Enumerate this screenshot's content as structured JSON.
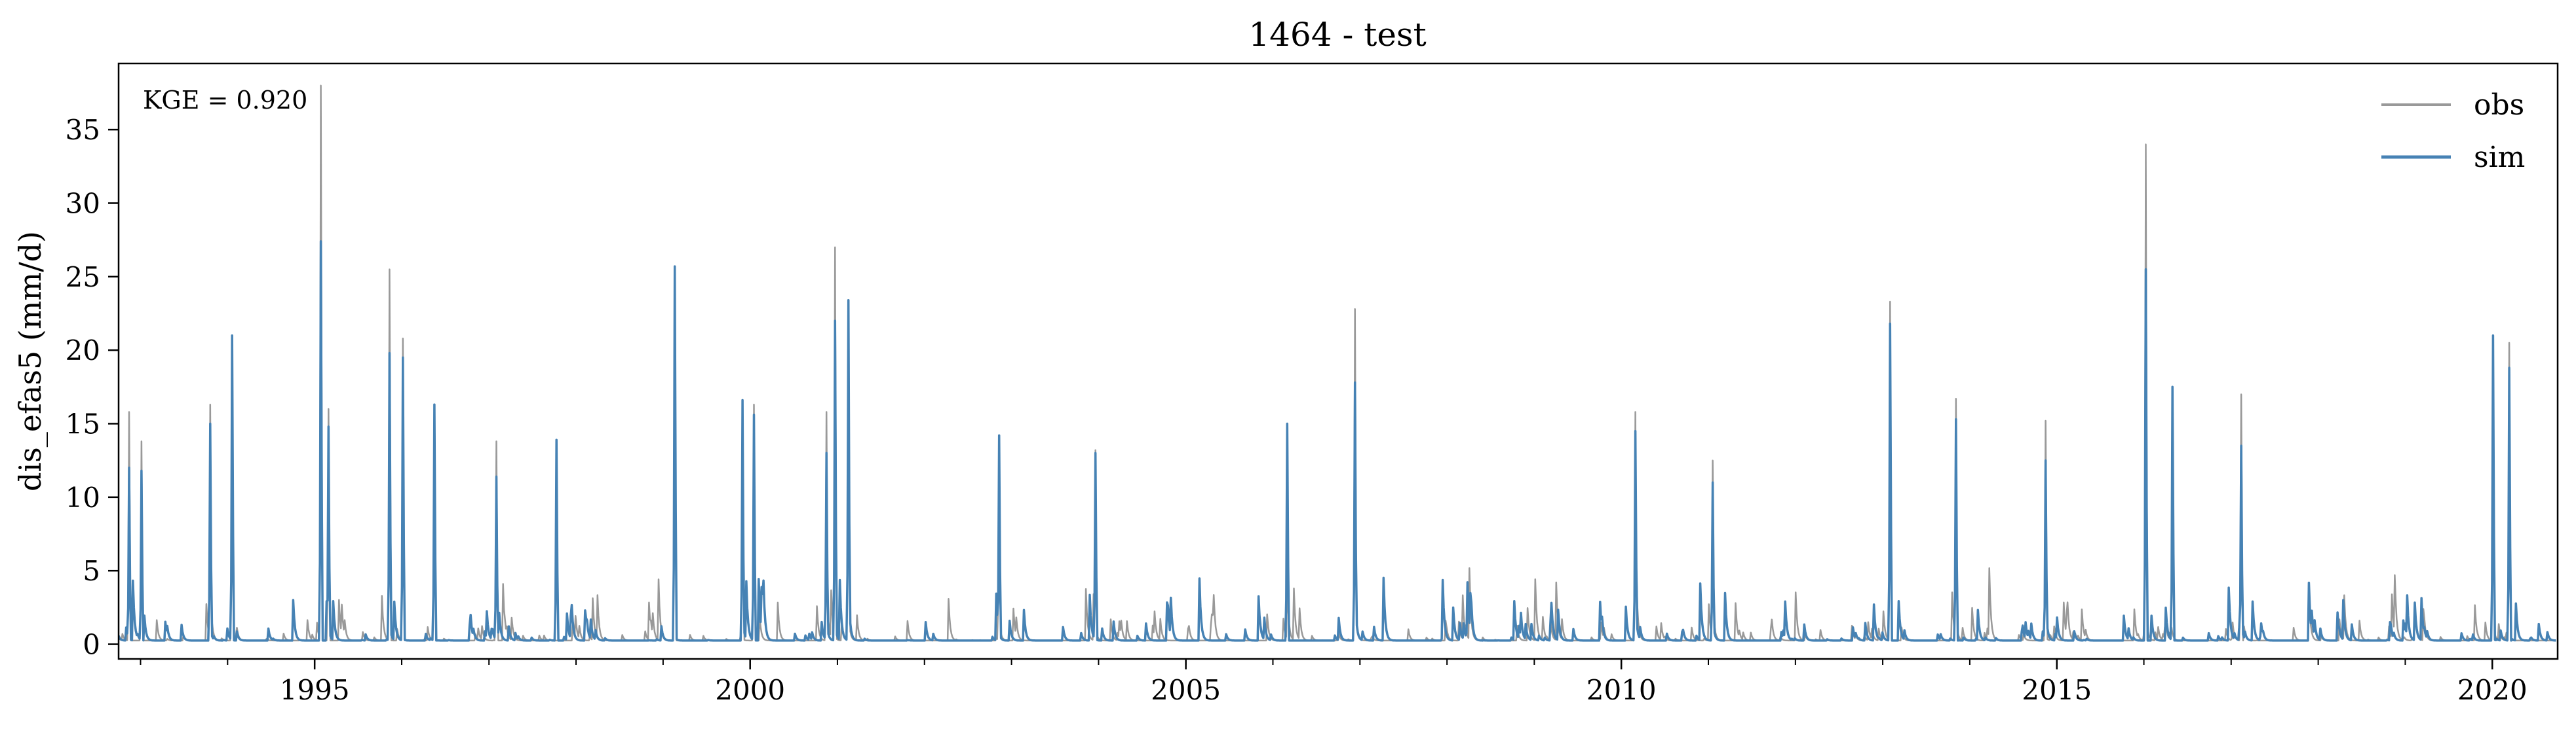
{
  "chart_data": {
    "type": "line",
    "title": "1464 - test",
    "xlabel": "",
    "ylabel": "dis_efas5 (mm/d)",
    "annotation": "KGE = 0.920",
    "x_range": [
      "1992-10-01",
      "2020-10-01"
    ],
    "ylim": [
      -1,
      39.5
    ],
    "x_ticks": [
      {
        "date": "1995-01-01",
        "label": "1995"
      },
      {
        "date": "2000-01-01",
        "label": "2000"
      },
      {
        "date": "2005-01-01",
        "label": "2005"
      },
      {
        "date": "2010-01-01",
        "label": "2010"
      },
      {
        "date": "2015-01-01",
        "label": "2015"
      },
      {
        "date": "2020-01-01",
        "label": "2020"
      }
    ],
    "y_ticks": [
      0,
      5,
      10,
      15,
      20,
      25,
      30,
      35
    ],
    "grid": false,
    "legend": {
      "placement": "top-right"
    },
    "series": [
      {
        "name": "obs",
        "color": "#999999",
        "peaks": [
          {
            "date": "1992-11-15",
            "value": 15.8
          },
          {
            "date": "1993-01-05",
            "value": 13.8
          },
          {
            "date": "1993-10-20",
            "value": 16.3
          },
          {
            "date": "1994-01-20",
            "value": 21.0
          },
          {
            "date": "1995-01-25",
            "value": 38.0
          },
          {
            "date": "1995-03-01",
            "value": 16.0
          },
          {
            "date": "1995-11-10",
            "value": 25.5
          },
          {
            "date": "1996-01-05",
            "value": 20.8
          },
          {
            "date": "1996-05-15",
            "value": 16.3
          },
          {
            "date": "1997-02-01",
            "value": 13.8
          },
          {
            "date": "1999-02-20",
            "value": 25.7
          },
          {
            "date": "1999-12-01",
            "value": 16.6
          },
          {
            "date": "2000-01-15",
            "value": 16.3
          },
          {
            "date": "2000-11-15",
            "value": 15.8
          },
          {
            "date": "2000-12-20",
            "value": 27.0
          },
          {
            "date": "2001-02-15",
            "value": 23.0
          },
          {
            "date": "2002-11-10",
            "value": 14.0
          },
          {
            "date": "2003-12-20",
            "value": 13.2
          },
          {
            "date": "2006-12-10",
            "value": 22.8
          },
          {
            "date": "2010-03-01",
            "value": 15.8
          },
          {
            "date": "2011-01-20",
            "value": 12.5
          },
          {
            "date": "2013-02-01",
            "value": 23.3
          },
          {
            "date": "2013-11-05",
            "value": 16.7
          },
          {
            "date": "2014-11-15",
            "value": 15.2
          },
          {
            "date": "2016-01-10",
            "value": 34.0
          },
          {
            "date": "2017-02-10",
            "value": 17.0
          },
          {
            "date": "2020-01-05",
            "value": 21.0
          },
          {
            "date": "2020-03-10",
            "value": 20.5
          }
        ]
      },
      {
        "name": "sim",
        "color": "#4682b4",
        "peaks": [
          {
            "date": "1992-11-15",
            "value": 12.0
          },
          {
            "date": "1993-01-05",
            "value": 11.8
          },
          {
            "date": "1993-10-20",
            "value": 15.0
          },
          {
            "date": "1994-01-20",
            "value": 21.0
          },
          {
            "date": "1995-01-25",
            "value": 27.4
          },
          {
            "date": "1995-03-01",
            "value": 14.8
          },
          {
            "date": "1995-11-10",
            "value": 19.8
          },
          {
            "date": "1996-01-05",
            "value": 19.5
          },
          {
            "date": "1996-05-15",
            "value": 16.3
          },
          {
            "date": "1997-02-01",
            "value": 11.4
          },
          {
            "date": "1997-10-10",
            "value": 13.9
          },
          {
            "date": "1999-02-20",
            "value": 25.7
          },
          {
            "date": "1999-12-01",
            "value": 16.6
          },
          {
            "date": "2000-01-15",
            "value": 15.6
          },
          {
            "date": "2000-11-15",
            "value": 13.0
          },
          {
            "date": "2000-12-20",
            "value": 22.0
          },
          {
            "date": "2001-02-15",
            "value": 23.4
          },
          {
            "date": "2002-11-10",
            "value": 14.2
          },
          {
            "date": "2003-12-20",
            "value": 13.0
          },
          {
            "date": "2006-03-01",
            "value": 15.0
          },
          {
            "date": "2006-12-10",
            "value": 17.8
          },
          {
            "date": "2010-03-01",
            "value": 14.5
          },
          {
            "date": "2011-01-20",
            "value": 11.0
          },
          {
            "date": "2013-02-01",
            "value": 21.8
          },
          {
            "date": "2013-11-05",
            "value": 15.3
          },
          {
            "date": "2014-11-15",
            "value": 12.5
          },
          {
            "date": "2016-01-10",
            "value": 25.5
          },
          {
            "date": "2016-05-01",
            "value": 17.5
          },
          {
            "date": "2017-02-10",
            "value": 13.5
          },
          {
            "date": "2020-01-05",
            "value": 21.0
          },
          {
            "date": "2020-03-10",
            "value": 18.8
          }
        ]
      }
    ]
  }
}
